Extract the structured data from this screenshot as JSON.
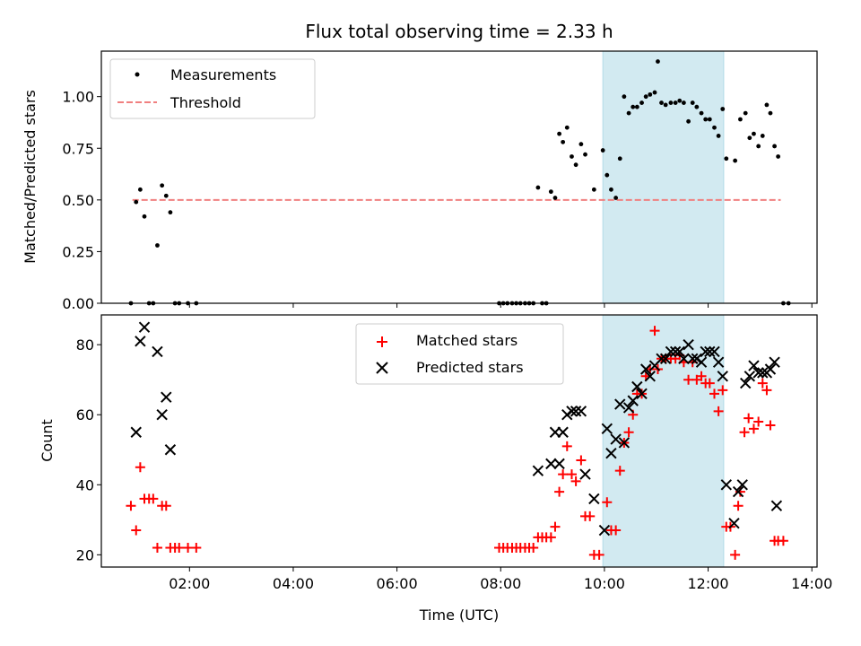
{
  "chart_data": [
    {
      "type": "scatter",
      "title": "Flux total observing time = 2.33 h",
      "xlabel": "",
      "ylabel": "Matched/Predicted stars",
      "xlim": [
        0.3,
        14.1
      ],
      "ylim": [
        0.0,
        1.22
      ],
      "yticks": [
        0.0,
        0.25,
        0.5,
        0.75,
        1.0
      ],
      "ytick_labels": [
        "0.00",
        "0.25",
        "0.50",
        "0.75",
        "1.00"
      ],
      "highlight_span": {
        "start": 9.97,
        "end": 12.3,
        "color": "#add8e6"
      },
      "legend_position": "upper-left",
      "threshold": {
        "name": "Threshold",
        "y": 0.5,
        "x_start": 0.9,
        "x_end": 13.4,
        "color": "#f08080"
      },
      "series": [
        {
          "name": "Measurements",
          "marker": "dot",
          "color": "#000000",
          "points": [
            [
              0.87,
              0.0
            ],
            [
              0.97,
              0.49
            ],
            [
              1.05,
              0.55
            ],
            [
              1.13,
              0.42
            ],
            [
              1.22,
              0.0
            ],
            [
              1.3,
              0.0
            ],
            [
              1.38,
              0.28
            ],
            [
              1.47,
              0.57
            ],
            [
              1.55,
              0.52
            ],
            [
              1.63,
              0.44
            ],
            [
              1.72,
              0.0
            ],
            [
              1.8,
              0.0
            ],
            [
              1.97,
              0.0
            ],
            [
              2.13,
              0.0
            ],
            [
              7.97,
              0.0
            ],
            [
              8.05,
              0.0
            ],
            [
              8.13,
              0.0
            ],
            [
              8.22,
              0.0
            ],
            [
              8.3,
              0.0
            ],
            [
              8.38,
              0.0
            ],
            [
              8.47,
              0.0
            ],
            [
              8.55,
              0.0
            ],
            [
              8.63,
              0.0
            ],
            [
              8.72,
              0.56
            ],
            [
              8.8,
              0.0
            ],
            [
              8.88,
              0.0
            ],
            [
              8.97,
              0.54
            ],
            [
              9.05,
              0.51
            ],
            [
              9.13,
              0.82
            ],
            [
              9.2,
              0.78
            ],
            [
              9.28,
              0.85
            ],
            [
              9.37,
              0.71
            ],
            [
              9.45,
              0.67
            ],
            [
              9.55,
              0.77
            ],
            [
              9.63,
              0.72
            ],
            [
              9.8,
              0.55
            ],
            [
              9.97,
              0.74
            ],
            [
              10.05,
              0.62
            ],
            [
              10.13,
              0.55
            ],
            [
              10.22,
              0.51
            ],
            [
              10.3,
              0.7
            ],
            [
              10.38,
              1.0
            ],
            [
              10.47,
              0.92
            ],
            [
              10.55,
              0.95
            ],
            [
              10.63,
              0.95
            ],
            [
              10.72,
              0.97
            ],
            [
              10.8,
              1.0
            ],
            [
              10.88,
              1.01
            ],
            [
              10.97,
              1.02
            ],
            [
              11.03,
              1.17
            ],
            [
              11.1,
              0.97
            ],
            [
              11.18,
              0.96
            ],
            [
              11.28,
              0.97
            ],
            [
              11.37,
              0.97
            ],
            [
              11.45,
              0.98
            ],
            [
              11.53,
              0.97
            ],
            [
              11.62,
              0.88
            ],
            [
              11.7,
              0.97
            ],
            [
              11.78,
              0.95
            ],
            [
              11.87,
              0.92
            ],
            [
              11.95,
              0.89
            ],
            [
              12.03,
              0.89
            ],
            [
              12.12,
              0.85
            ],
            [
              12.2,
              0.81
            ],
            [
              12.28,
              0.94
            ],
            [
              12.35,
              0.7
            ],
            [
              12.52,
              0.69
            ],
            [
              12.62,
              0.89
            ],
            [
              12.72,
              0.92
            ],
            [
              12.8,
              0.8
            ],
            [
              12.88,
              0.82
            ],
            [
              12.97,
              0.76
            ],
            [
              13.05,
              0.81
            ],
            [
              13.13,
              0.96
            ],
            [
              13.2,
              0.92
            ],
            [
              13.28,
              0.76
            ],
            [
              13.35,
              0.71
            ],
            [
              13.45,
              0.0
            ],
            [
              13.55,
              0.0
            ]
          ]
        }
      ]
    },
    {
      "type": "scatter",
      "title": "",
      "xlabel": "Time (UTC)",
      "ylabel": "Count",
      "xlim": [
        0.3,
        14.1
      ],
      "ylim": [
        16.5,
        88.5
      ],
      "xticks": [
        2,
        4,
        6,
        8,
        10,
        12,
        14
      ],
      "xtick_labels": [
        "02:00",
        "04:00",
        "06:00",
        "08:00",
        "10:00",
        "12:00",
        "14:00"
      ],
      "yticks": [
        20,
        40,
        60,
        80
      ],
      "ytick_labels": [
        "20",
        "40",
        "60",
        "80"
      ],
      "highlight_span": {
        "start": 9.97,
        "end": 12.3,
        "color": "#add8e6"
      },
      "legend_position": "upper-center",
      "series": [
        {
          "name": "Matched stars",
          "marker": "plus",
          "color": "#ff0000",
          "points": [
            [
              0.87,
              34
            ],
            [
              0.97,
              27
            ],
            [
              1.05,
              45
            ],
            [
              1.13,
              36
            ],
            [
              1.22,
              36
            ],
            [
              1.3,
              36
            ],
            [
              1.38,
              22
            ],
            [
              1.47,
              34
            ],
            [
              1.55,
              34
            ],
            [
              1.63,
              22
            ],
            [
              1.72,
              22
            ],
            [
              1.8,
              22
            ],
            [
              1.97,
              22
            ],
            [
              2.13,
              22
            ],
            [
              7.97,
              22
            ],
            [
              8.05,
              22
            ],
            [
              8.13,
              22
            ],
            [
              8.22,
              22
            ],
            [
              8.3,
              22
            ],
            [
              8.38,
              22
            ],
            [
              8.47,
              22
            ],
            [
              8.55,
              22
            ],
            [
              8.63,
              22
            ],
            [
              8.72,
              25
            ],
            [
              8.8,
              25
            ],
            [
              8.88,
              25
            ],
            [
              8.97,
              25
            ],
            [
              9.05,
              28
            ],
            [
              9.13,
              38
            ],
            [
              9.2,
              43
            ],
            [
              9.28,
              51
            ],
            [
              9.37,
              43
            ],
            [
              9.45,
              41
            ],
            [
              9.55,
              47
            ],
            [
              9.63,
              31
            ],
            [
              9.72,
              31
            ],
            [
              9.8,
              20
            ],
            [
              9.9,
              20
            ],
            [
              10.05,
              35
            ],
            [
              10.13,
              27
            ],
            [
              10.22,
              27
            ],
            [
              10.3,
              44
            ],
            [
              10.38,
              52
            ],
            [
              10.47,
              55
            ],
            [
              10.55,
              60
            ],
            [
              10.63,
              66
            ],
            [
              10.72,
              66
            ],
            [
              10.8,
              71
            ],
            [
              10.88,
              73
            ],
            [
              10.97,
              84
            ],
            [
              11.03,
              73
            ],
            [
              11.1,
              76
            ],
            [
              11.18,
              76
            ],
            [
              11.28,
              76
            ],
            [
              11.37,
              76
            ],
            [
              11.45,
              77
            ],
            [
              11.53,
              75
            ],
            [
              11.62,
              70
            ],
            [
              11.7,
              75
            ],
            [
              11.78,
              70
            ],
            [
              11.87,
              71
            ],
            [
              11.95,
              69
            ],
            [
              12.03,
              69
            ],
            [
              12.12,
              66
            ],
            [
              12.2,
              61
            ],
            [
              12.28,
              67
            ],
            [
              12.35,
              28
            ],
            [
              12.43,
              28
            ],
            [
              12.52,
              20
            ],
            [
              12.58,
              34
            ],
            [
              12.62,
              38
            ],
            [
              12.7,
              55
            ],
            [
              12.78,
              59
            ],
            [
              12.88,
              56
            ],
            [
              12.97,
              58
            ],
            [
              13.05,
              69
            ],
            [
              13.13,
              67
            ],
            [
              13.2,
              57
            ],
            [
              13.28,
              24
            ],
            [
              13.35,
              24
            ],
            [
              13.45,
              24
            ]
          ]
        },
        {
          "name": "Predicted stars",
          "marker": "x",
          "color": "#000000",
          "points": [
            [
              0.97,
              55
            ],
            [
              1.05,
              81
            ],
            [
              1.13,
              85
            ],
            [
              1.38,
              78
            ],
            [
              1.47,
              60
            ],
            [
              1.55,
              65
            ],
            [
              1.63,
              50
            ],
            [
              8.72,
              44
            ],
            [
              8.97,
              46
            ],
            [
              9.05,
              55
            ],
            [
              9.13,
              46
            ],
            [
              9.2,
              55
            ],
            [
              9.28,
              60
            ],
            [
              9.37,
              61
            ],
            [
              9.45,
              61
            ],
            [
              9.55,
              61
            ],
            [
              9.63,
              43
            ],
            [
              9.8,
              36
            ],
            [
              10.0,
              27
            ],
            [
              10.05,
              56
            ],
            [
              10.13,
              49
            ],
            [
              10.22,
              53
            ],
            [
              10.3,
              63
            ],
            [
              10.38,
              52
            ],
            [
              10.47,
              62
            ],
            [
              10.55,
              64
            ],
            [
              10.63,
              68
            ],
            [
              10.72,
              66
            ],
            [
              10.8,
              73
            ],
            [
              10.88,
              71
            ],
            [
              10.97,
              74
            ],
            [
              11.1,
              76
            ],
            [
              11.18,
              76
            ],
            [
              11.28,
              78
            ],
            [
              11.37,
              78
            ],
            [
              11.45,
              78
            ],
            [
              11.53,
              76
            ],
            [
              11.62,
              80
            ],
            [
              11.7,
              76
            ],
            [
              11.78,
              76
            ],
            [
              11.87,
              75
            ],
            [
              11.95,
              78
            ],
            [
              12.03,
              78
            ],
            [
              12.12,
              78
            ],
            [
              12.2,
              75
            ],
            [
              12.28,
              71
            ],
            [
              12.35,
              40
            ],
            [
              12.5,
              29
            ],
            [
              12.58,
              38
            ],
            [
              12.66,
              40
            ],
            [
              12.72,
              69
            ],
            [
              12.8,
              71
            ],
            [
              12.88,
              74
            ],
            [
              12.97,
              72
            ],
            [
              13.05,
              72
            ],
            [
              13.13,
              72
            ],
            [
              13.2,
              73
            ],
            [
              13.28,
              75
            ],
            [
              13.32,
              34
            ]
          ]
        }
      ]
    }
  ]
}
